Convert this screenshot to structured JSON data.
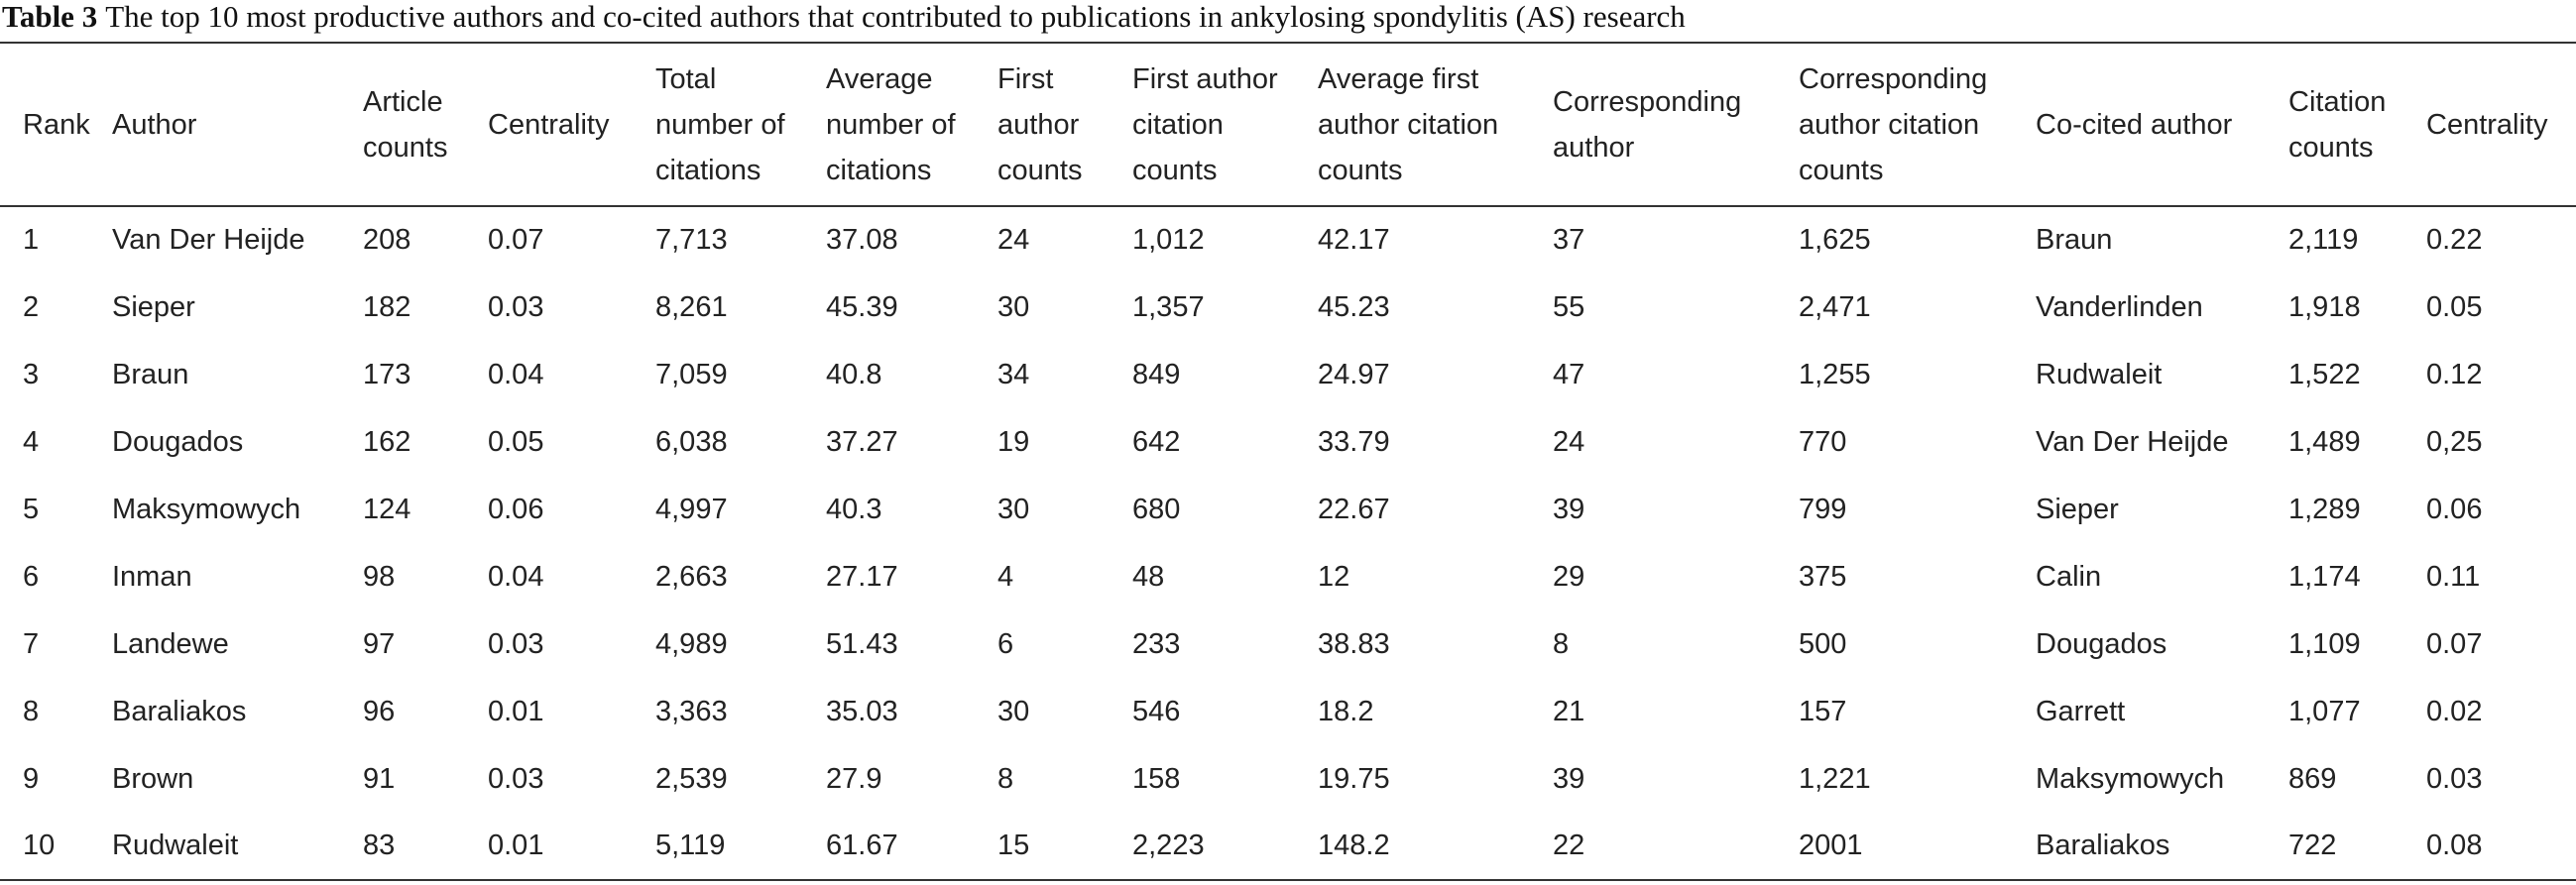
{
  "caption": {
    "label": "Table 3",
    "text": "The top 10 most productive authors and co-cited authors that contributed to publications in ankylosing spondylitis (AS) research"
  },
  "table": {
    "header": [
      [
        "Rank"
      ],
      [
        "Author"
      ],
      [
        "Article",
        "counts"
      ],
      [
        "Centrality"
      ],
      [
        "Total",
        "number of",
        "citations"
      ],
      [
        "Average",
        "number of",
        "citations"
      ],
      [
        "First",
        "author",
        "counts"
      ],
      [
        "First author",
        "citation",
        "counts"
      ],
      [
        "Average first",
        "author citation",
        "counts"
      ],
      [
        "Corresponding",
        "author"
      ],
      [
        "Corresponding",
        "author citation",
        "counts"
      ],
      [
        "Co-cited author"
      ],
      [
        "Citation",
        "counts"
      ],
      [
        "Centrality"
      ]
    ],
    "rows": [
      [
        "1",
        "Van Der Heijde",
        "208",
        "0.07",
        "7,713",
        "37.08",
        "24",
        "1,012",
        "42.17",
        "37",
        "1,625",
        "Braun",
        "2,119",
        "0.22"
      ],
      [
        "2",
        "Sieper",
        "182",
        "0.03",
        "8,261",
        "45.39",
        "30",
        "1,357",
        "45.23",
        "55",
        "2,471",
        "Vanderlinden",
        "1,918",
        "0.05"
      ],
      [
        "3",
        "Braun",
        "173",
        "0.04",
        "7,059",
        "40.8",
        "34",
        "849",
        "24.97",
        "47",
        "1,255",
        "Rudwaleit",
        "1,522",
        "0.12"
      ],
      [
        "4",
        "Dougados",
        "162",
        "0.05",
        "6,038",
        "37.27",
        "19",
        "642",
        "33.79",
        "24",
        "770",
        "Van Der Heijde",
        "1,489",
        "0,25"
      ],
      [
        "5",
        "Maksymowych",
        "124",
        "0.06",
        "4,997",
        "40.3",
        "30",
        "680",
        "22.67",
        "39",
        "799",
        "Sieper",
        "1,289",
        "0.06"
      ],
      [
        "6",
        "Inman",
        "98",
        "0.04",
        "2,663",
        "27.17",
        "4",
        "48",
        "12",
        "29",
        "375",
        "Calin",
        "1,174",
        "0.11"
      ],
      [
        "7",
        "Landewe",
        "97",
        "0.03",
        "4,989",
        "51.43",
        "6",
        "233",
        "38.83",
        "8",
        "500",
        "Dougados",
        "1,109",
        "0.07"
      ],
      [
        "8",
        "Baraliakos",
        "96",
        "0.01",
        "3,363",
        "35.03",
        "30",
        "546",
        "18.2",
        "21",
        "157",
        "Garrett",
        "1,077",
        "0.02"
      ],
      [
        "9",
        "Brown",
        "91",
        "0.03",
        "2,539",
        "27.9",
        "8",
        "158",
        "19.75",
        "39",
        "1,221",
        "Maksymowych",
        "869",
        "0.03"
      ],
      [
        "10",
        "Rudwaleit",
        "83",
        "0.01",
        "5,119",
        "61.67",
        "15",
        "2,223",
        "148.2",
        "22",
        "2001",
        "Baraliakos",
        "722",
        "0.08"
      ]
    ]
  }
}
